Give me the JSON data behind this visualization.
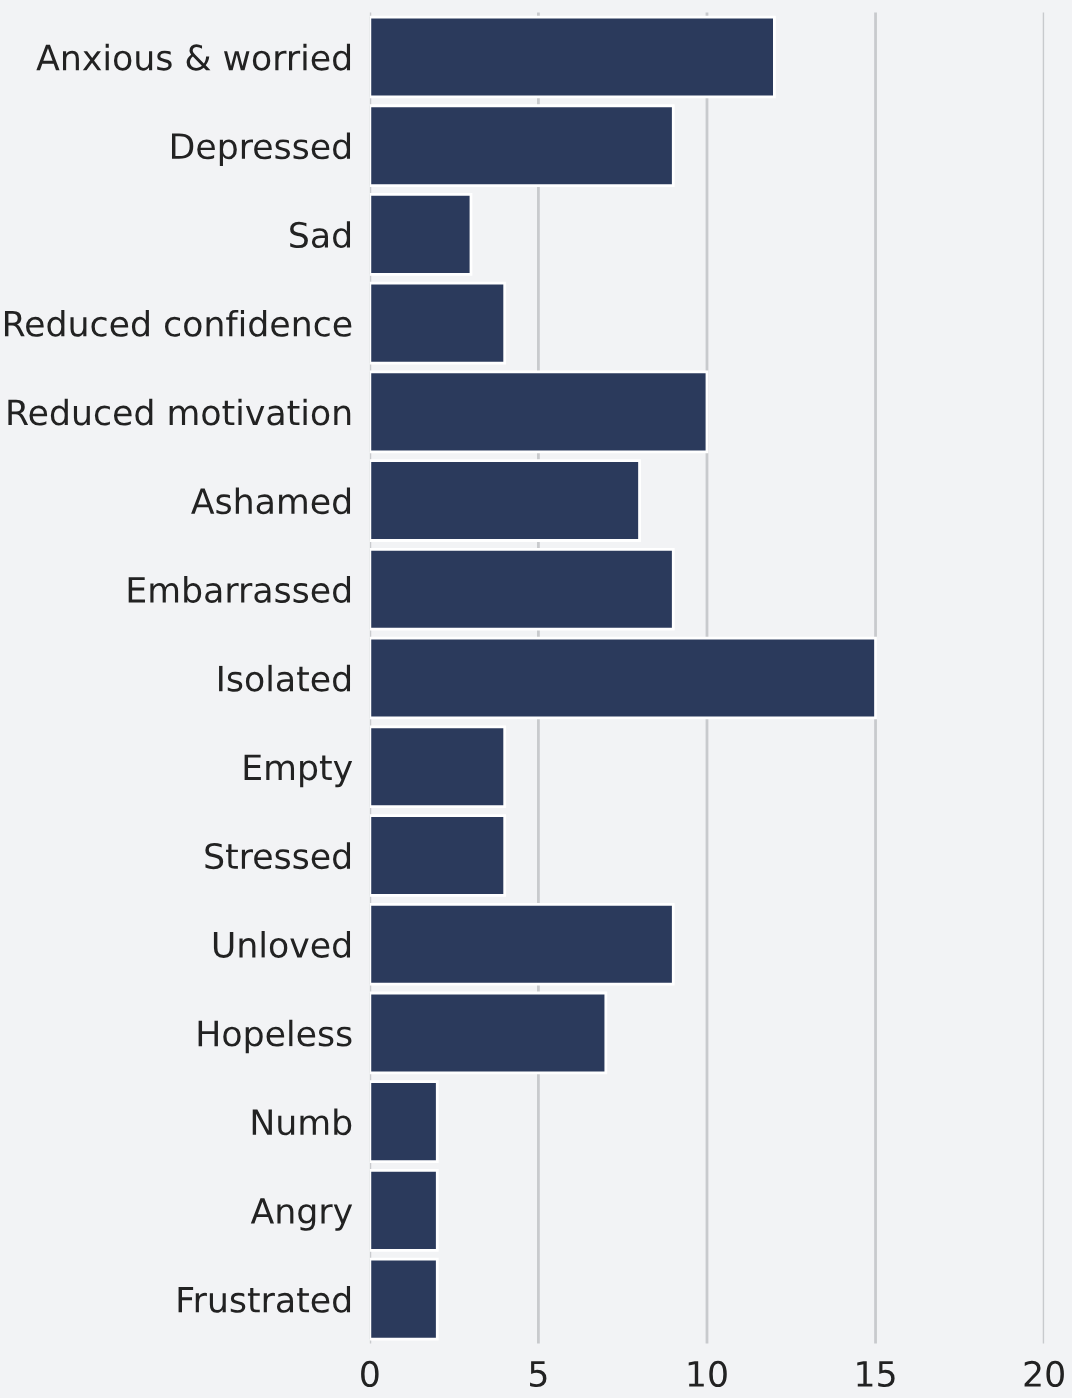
{
  "chart_data": {
    "type": "bar",
    "orientation": "horizontal",
    "categories": [
      "Anxious & worried",
      "Depressed",
      "Sad",
      "Reduced confidence",
      "Reduced motivation",
      "Ashamed",
      "Embarrassed",
      "Isolated",
      "Empty",
      "Stressed",
      "Unloved",
      "Hopeless",
      "Numb",
      "Angry",
      "Frustrated"
    ],
    "values": [
      12,
      9,
      3,
      4,
      10,
      8,
      9,
      15,
      4,
      4,
      9,
      7,
      2,
      2,
      2
    ],
    "color": "#2b3a5c",
    "xlim": [
      0,
      20
    ],
    "xticks": [
      0,
      5,
      10,
      15,
      20
    ],
    "grid": "x"
  }
}
